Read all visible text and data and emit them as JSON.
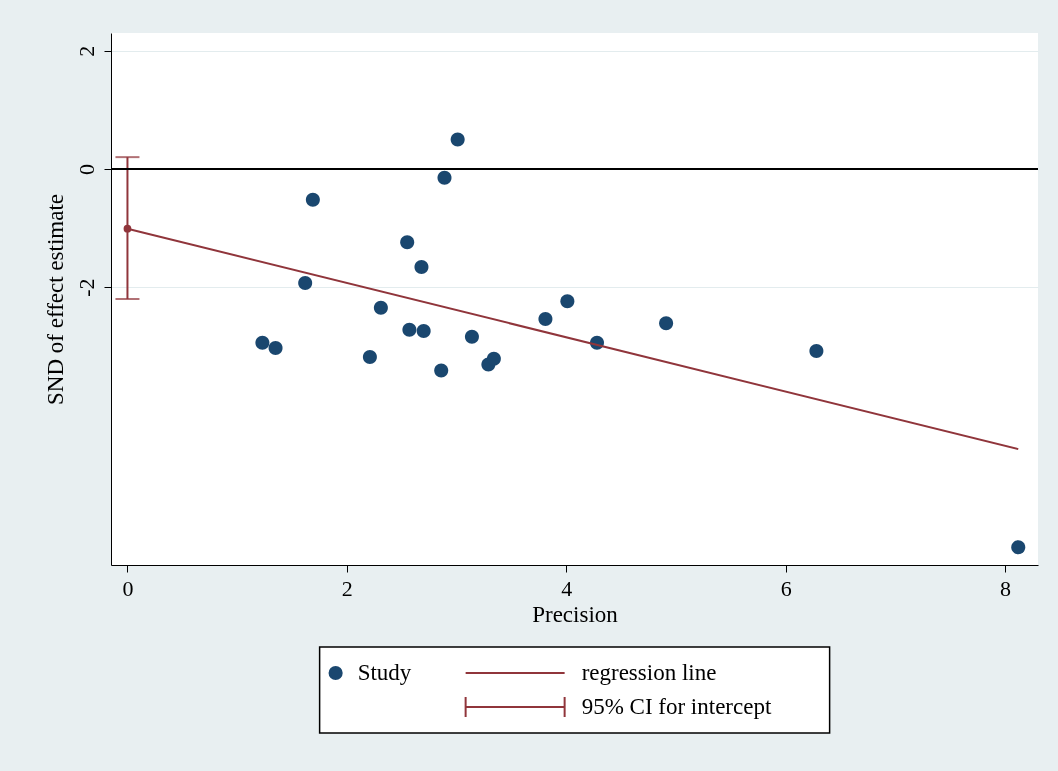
{
  "chart_data": {
    "type": "scatter",
    "xlabel": "Precision",
    "ylabel": "SND of effect estimate",
    "xlim": [
      -0.15,
      8.3
    ],
    "ylim": [
      -6.7,
      2.3
    ],
    "xticks": [
      0,
      2,
      4,
      6,
      8
    ],
    "yticks": [
      -2,
      0,
      2
    ],
    "grid": "y",
    "legend": "bottom",
    "ref_lines": [
      {
        "axis": "y",
        "value": 0,
        "color": "#000000"
      }
    ],
    "series": [
      {
        "name": "Study",
        "marker": "circle",
        "color": "#1a476f",
        "x": [
          1.23,
          1.35,
          1.62,
          1.69,
          2.21,
          2.31,
          2.55,
          2.57,
          2.68,
          2.7,
          2.86,
          2.89,
          3.01,
          3.14,
          3.29,
          3.34,
          3.81,
          4.01,
          4.28,
          4.91,
          6.28,
          8.12
        ],
        "values": [
          -2.94,
          -3.03,
          -1.93,
          -0.52,
          -3.18,
          -2.35,
          -1.24,
          -2.72,
          -1.66,
          -2.74,
          -3.41,
          -0.15,
          0.5,
          -2.84,
          -3.31,
          -3.21,
          -2.54,
          -2.24,
          -2.94,
          -2.61,
          -3.08,
          -6.4
        ]
      },
      {
        "name": "regression line",
        "type": "line",
        "color": "#90353b",
        "x": [
          0,
          8.12
        ],
        "values": [
          -1.01,
          -4.74
        ]
      },
      {
        "name": "95% CI for intercept",
        "color": "#90353b",
        "x": [
          0
        ],
        "values": [
          -1.01
        ],
        "errors": [
          [
            -2.2,
            0.2
          ]
        ]
      }
    ]
  }
}
